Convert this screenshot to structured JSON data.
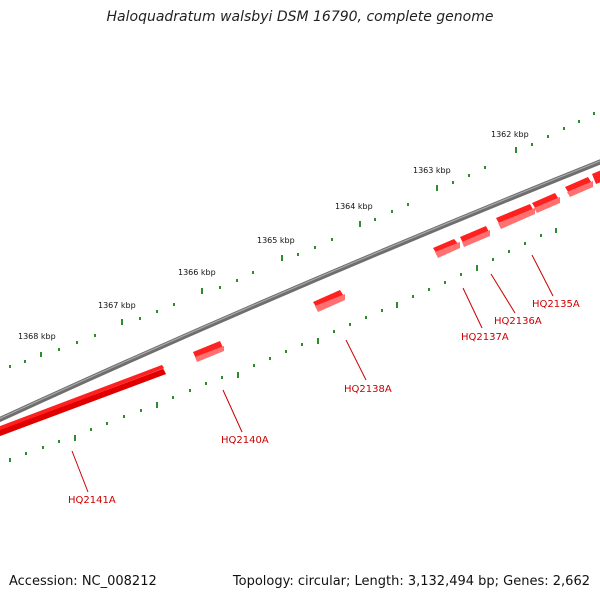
{
  "title": "Haloquadratum walsbyi DSM 16790, complete genome",
  "footer": {
    "accession": "Accession: NC_008212",
    "summary": "Topology: circular; Length: 3,132,494 bp; Genes: 2,662"
  },
  "colors": {
    "backbone": "#808080",
    "tick": "#2e8b2e",
    "gene": "#ff0000",
    "gene_label": "#cc0000"
  },
  "scale_labels": [
    "1362 kbp",
    "1363 kbp",
    "1364 kbp",
    "1365 kbp",
    "1366 kbp",
    "1367 kbp",
    "1368 kbp"
  ],
  "gene_labels": [
    "HQ2135A",
    "HQ2136A",
    "HQ2137A",
    "HQ2138A",
    "HQ2140A",
    "HQ2141A"
  ]
}
